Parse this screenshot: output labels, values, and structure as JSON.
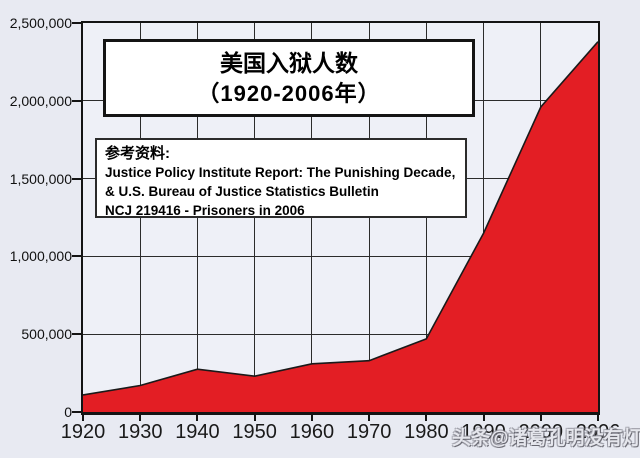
{
  "page": {
    "background": "#e8eaf2",
    "plot_background": "#eef0f7",
    "grid_color": "#2b2b2b",
    "axis_color": "#141414"
  },
  "chart_data": {
    "type": "area",
    "title": "美国入狱人数",
    "subtitle": "（1920-2006年）",
    "categories": [
      "1920",
      "1930",
      "1940",
      "1950",
      "1960",
      "1970",
      "1980",
      "1990",
      "2000",
      "2006"
    ],
    "values": [
      110000,
      170000,
      275000,
      230000,
      310000,
      330000,
      470000,
      1150000,
      1960000,
      2380000
    ],
    "ylim": [
      0,
      2500000
    ],
    "y_tick_values": [
      2500000,
      2000000,
      1500000,
      1000000,
      500000,
      0
    ],
    "y_tick_labels": [
      "2,500,000",
      "2,000,000",
      "1,500,000",
      "1,000,000",
      "500,000",
      "0"
    ],
    "xlabel": "",
    "ylabel": "",
    "grid": true,
    "legend": "none",
    "area_color": "#e31e24",
    "outline_color": "#1a1a1a"
  },
  "reference_box": {
    "heading": "参考资料:",
    "lines": [
      "Justice Policy Institute Report: The Punishing Decade,",
      "& U.S. Bureau of Justice Statistics Bulletin",
      "NCJ 219416 - Prisoners in 2006"
    ]
  },
  "watermark": {
    "text": "头条@诸葛孔明没有灯"
  }
}
